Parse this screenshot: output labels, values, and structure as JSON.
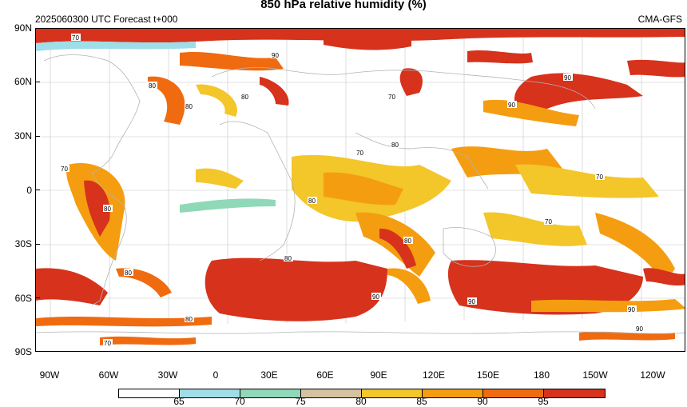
{
  "header": {
    "title": "850 hPa relative humidity (%)",
    "run_info": "2025060300 UTC Forecast t+000",
    "model": "CMA-GFS"
  },
  "axes": {
    "lat_labels": [
      "90N",
      "60N",
      "30N",
      "0",
      "30S",
      "60S",
      "90S"
    ],
    "lon_labels": [
      "90W",
      "60W",
      "30W",
      "0",
      "30E",
      "60E",
      "90E",
      "120E",
      "150E",
      "180",
      "150W",
      "120W"
    ]
  },
  "legend": {
    "levels": [
      "65",
      "70",
      "75",
      "80",
      "85",
      "90",
      "95"
    ],
    "colors": [
      "#ffffff",
      "#9fdde8",
      "#8fd8b8",
      "#d6c2a0",
      "#f3c62a",
      "#f59d10",
      "#f06a10",
      "#d6321c"
    ]
  },
  "contour_labels": [
    "70",
    "80",
    "90"
  ],
  "colors": {
    "rh_65_70": "#9fdde8",
    "rh_70_75": "#8fd8b8",
    "rh_75_80": "#d6c2a0",
    "rh_80_85": "#f3c62a",
    "rh_85_90": "#f59d10",
    "rh_90_95": "#f06a10",
    "rh_95_plus": "#d6321c",
    "coastline": "#b3b3b3",
    "grid": "#c8c8c8"
  }
}
